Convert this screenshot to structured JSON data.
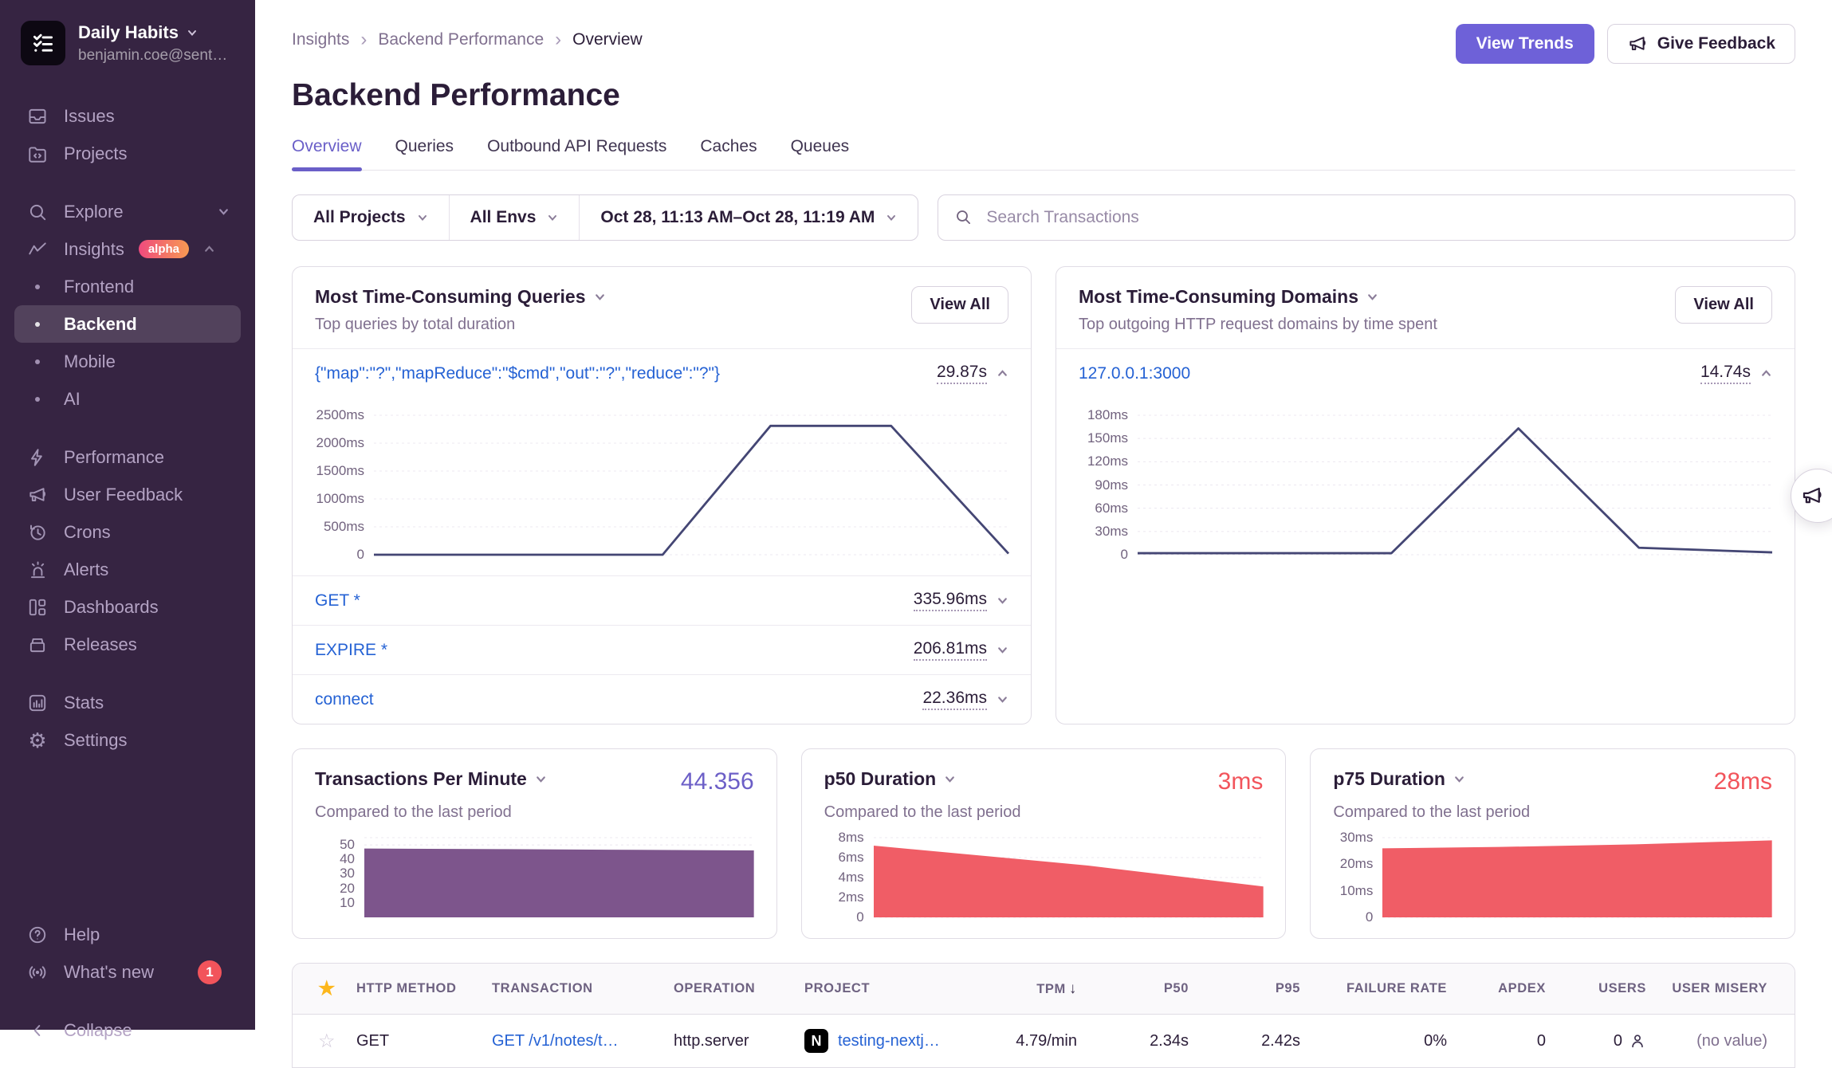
{
  "sidebar": {
    "org": {
      "name": "Daily Habits",
      "email": "benjamin.coe@sent…"
    },
    "items_top": [
      {
        "label": "Issues",
        "icon": "issues-icon"
      },
      {
        "label": "Projects",
        "icon": "projects-icon"
      }
    ],
    "explore": {
      "label": "Explore",
      "icon": "explore-icon"
    },
    "insights": {
      "label": "Insights",
      "badge": "alpha",
      "icon": "insights-icon"
    },
    "insights_children": [
      {
        "label": "Frontend"
      },
      {
        "label": "Backend"
      },
      {
        "label": "Mobile"
      },
      {
        "label": "AI"
      }
    ],
    "items_mid": [
      {
        "label": "Performance",
        "icon": "lightning-icon"
      },
      {
        "label": "User Feedback",
        "icon": "megaphone-icon"
      },
      {
        "label": "Crons",
        "icon": "clock-icon"
      },
      {
        "label": "Alerts",
        "icon": "siren-icon"
      },
      {
        "label": "Dashboards",
        "icon": "dashboards-icon"
      },
      {
        "label": "Releases",
        "icon": "archive-icon"
      }
    ],
    "items_low": [
      {
        "label": "Stats",
        "icon": "bar-chart-icon"
      },
      {
        "label": "Settings",
        "icon": "gear-icon"
      }
    ],
    "footer": {
      "help": "Help",
      "whats_new": "What's new",
      "whats_new_count": "1",
      "collapse": "Collapse"
    }
  },
  "header": {
    "breadcrumb": [
      "Insights",
      "Backend Performance",
      "Overview"
    ],
    "title": "Backend Performance",
    "view_trends": "View Trends",
    "give_feedback": "Give Feedback"
  },
  "tabs": [
    "Overview",
    "Queries",
    "Outbound API Requests",
    "Caches",
    "Queues"
  ],
  "filters": {
    "projects": "All Projects",
    "envs": "All Envs",
    "date_range": "Oct 28, 11:13 AM–Oct 28, 11:19 AM",
    "search_placeholder": "Search Transactions"
  },
  "queries_panel": {
    "title": "Most Time-Consuming Queries",
    "subtitle": "Top queries by total duration",
    "view_all": "View All",
    "top_row": {
      "label": "{\"map\":\"?\",\"mapReduce\":\"$cmd\",\"out\":\"?\",\"reduce\":\"?\"}",
      "value": "29.87s"
    },
    "rows": [
      {
        "label": "GET *",
        "value": "335.96ms"
      },
      {
        "label": "EXPIRE *",
        "value": "206.81ms"
      },
      {
        "label": "connect",
        "value": "22.36ms"
      }
    ]
  },
  "domains_panel": {
    "title": "Most Time-Consuming Domains",
    "subtitle": "Top outgoing HTTP request domains by time spent",
    "view_all": "View All",
    "top_row": {
      "label": "127.0.0.1:3000",
      "value": "14.74s"
    }
  },
  "cards": [
    {
      "title": "Transactions Per Minute",
      "value": "44.356",
      "subtitle": "Compared to the last period",
      "value_color": "#6C5FC7"
    },
    {
      "title": "p50 Duration",
      "value": "3ms",
      "subtitle": "Compared to the last period",
      "value_color": "#f2545b"
    },
    {
      "title": "p75 Duration",
      "value": "28ms",
      "subtitle": "Compared to the last period",
      "value_color": "#f2545b"
    }
  ],
  "table": {
    "columns": [
      "HTTP METHOD",
      "TRANSACTION",
      "OPERATION",
      "PROJECT",
      "TPM",
      "P50",
      "P95",
      "FAILURE RATE",
      "APDEX",
      "USERS",
      "USER MISERY"
    ],
    "sorted_column": "TPM",
    "row": {
      "http_method": "GET",
      "transaction": "GET /v1/notes/t…",
      "operation": "http.server",
      "project": "testing-nextj…",
      "project_platform": "N",
      "tpm": "4.79/min",
      "p50": "2.34s",
      "p95": "2.42s",
      "failure_rate": "0%",
      "apdex": "0",
      "users": "0",
      "user_misery": "(no value)"
    }
  },
  "chart_data": [
    {
      "id": "queries",
      "type": "line",
      "color": "#444674",
      "title": "Most Time-Consuming Queries duration over time",
      "ymax": 2500,
      "ylabel_unit": "ms",
      "x": [
        0,
        0.455,
        0.625,
        0.815,
        1
      ],
      "values": [
        0,
        0,
        2310,
        2310,
        20
      ],
      "yticks": [
        {
          "v": 2500,
          "label": "2500ms"
        },
        {
          "v": 2000,
          "label": "2000ms"
        },
        {
          "v": 1500,
          "label": "1500ms"
        },
        {
          "v": 1000,
          "label": "1000ms"
        },
        {
          "v": 500,
          "label": "500ms"
        },
        {
          "v": 0,
          "label": "0"
        }
      ]
    },
    {
      "id": "domains",
      "type": "line",
      "color": "#444674",
      "title": "Most Time-Consuming Domains time spent over time",
      "ymax": 180,
      "ylabel_unit": "ms",
      "x": [
        0,
        0.4,
        0.6,
        0.79,
        1
      ],
      "values": [
        2,
        2,
        163,
        9,
        3
      ],
      "yticks": [
        {
          "v": 180,
          "label": "180ms"
        },
        {
          "v": 150,
          "label": "150ms"
        },
        {
          "v": 120,
          "label": "120ms"
        },
        {
          "v": 90,
          "label": "90ms"
        },
        {
          "v": 60,
          "label": "60ms"
        },
        {
          "v": 30,
          "label": "30ms"
        },
        {
          "v": 0,
          "label": "0"
        }
      ]
    },
    {
      "id": "tpm",
      "type": "area",
      "color": "#7d558c",
      "title": "Transactions Per Minute",
      "current_value": 44.356,
      "ymax": 55,
      "x": [
        0,
        0.35,
        0.7,
        1
      ],
      "values": [
        47.5,
        47.1,
        46.6,
        46.2
      ],
      "yticks": [
        {
          "v": 55,
          "label": ""
        },
        {
          "v": 50,
          "label": "50"
        },
        {
          "v": 40,
          "label": "40"
        },
        {
          "v": 30,
          "label": "30"
        },
        {
          "v": 20,
          "label": "20"
        },
        {
          "v": 10,
          "label": "10"
        }
      ]
    },
    {
      "id": "p50",
      "type": "area",
      "color": "#f05d66",
      "title": "p50 Duration",
      "current_value_ms": 3,
      "ymax": 8,
      "x": [
        0,
        0.55,
        1
      ],
      "values": [
        7.2,
        5.2,
        3.1
      ],
      "yticks": [
        {
          "v": 8,
          "label": "8ms"
        },
        {
          "v": 6,
          "label": "6ms"
        },
        {
          "v": 4,
          "label": "4ms"
        },
        {
          "v": 2,
          "label": "2ms"
        },
        {
          "v": 0,
          "label": "0"
        }
      ]
    },
    {
      "id": "p75",
      "type": "area",
      "color": "#f05d66",
      "title": "p75 Duration",
      "current_value_ms": 28,
      "ymax": 30,
      "x": [
        0,
        0.3,
        0.65,
        1
      ],
      "values": [
        26,
        26.5,
        27.5,
        29
      ],
      "yticks": [
        {
          "v": 30,
          "label": "30ms"
        },
        {
          "v": 20,
          "label": "20ms"
        },
        {
          "v": 10,
          "label": "10ms"
        },
        {
          "v": 0,
          "label": "0"
        }
      ]
    }
  ]
}
